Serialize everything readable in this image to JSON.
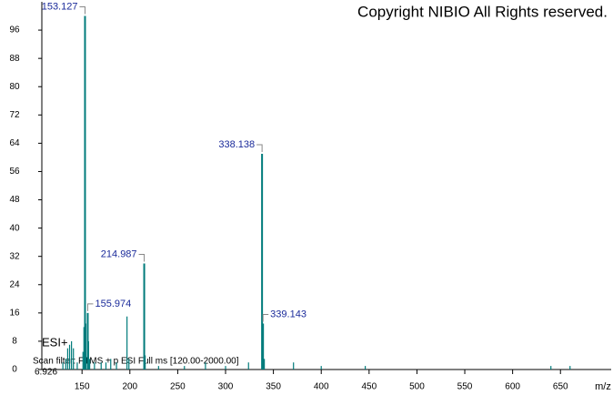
{
  "chart_data": {
    "type": "stick",
    "title": "Copyright NIBIO All Rights reserved.",
    "annotations": [
      "ESI+",
      "Scan filter: FTMS + p ESI Full ms [120.00-2000.00]",
      "6.926"
    ],
    "x_label": "m/z",
    "color": "#007b7b",
    "label_color": "#1a2a9a",
    "peaks": {
      "x": [
        153.127,
        155.974,
        214.987,
        338.138,
        339.143
      ],
      "values": [
        100,
        16,
        30,
        61,
        13
      ]
    },
    "minor_peaks": {
      "x": [
        130,
        133,
        135,
        137,
        139,
        141,
        145,
        151,
        152,
        154,
        156.8,
        158,
        163,
        170,
        175,
        180,
        186,
        197,
        199,
        216,
        230,
        257,
        279,
        300,
        324,
        340.5,
        371,
        400,
        446,
        640,
        660
      ],
      "values": [
        2,
        3,
        6,
        7,
        8,
        6,
        2,
        5,
        12,
        13,
        8,
        3,
        2,
        2,
        2,
        3,
        2,
        15,
        3,
        4,
        1,
        1,
        2,
        1,
        2,
        3,
        2,
        1,
        1,
        1,
        1
      ]
    },
    "xlim": [
      108,
      703
    ],
    "xticks": [
      150,
      200,
      250,
      300,
      350,
      400,
      450,
      500,
      550,
      600,
      650
    ],
    "ylim": [
      0,
      104
    ],
    "yticks": [
      0,
      8,
      16,
      24,
      32,
      40,
      48,
      56,
      64,
      72,
      80,
      88,
      96
    ]
  }
}
